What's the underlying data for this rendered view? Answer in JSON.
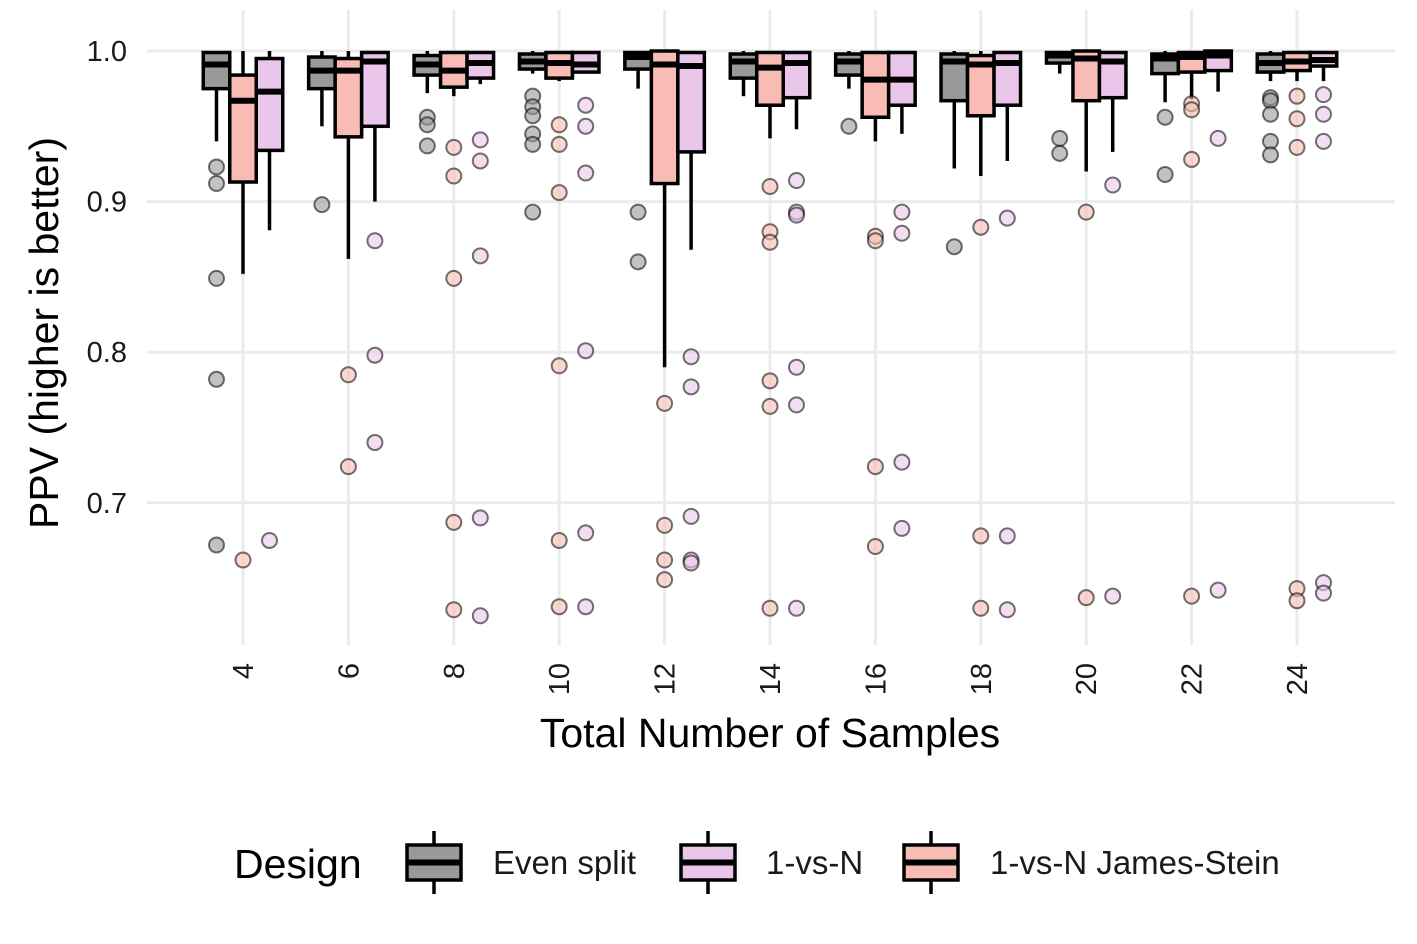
{
  "chart_data": {
    "type": "boxplot",
    "title": "",
    "xlabel": "Total Number of Samples",
    "ylabel": "PPV (higher is better)",
    "ylim": [
      0.605,
      1.02
    ],
    "y_ticks": [
      "0.7",
      "0.8",
      "0.9",
      "1.0"
    ],
    "y_tick_values": [
      0.7,
      0.8,
      0.9,
      1.0
    ],
    "categories": [
      "4",
      "6",
      "8",
      "10",
      "12",
      "14",
      "16",
      "18",
      "20",
      "22",
      "24"
    ],
    "grid": true,
    "legend": {
      "title": "Design",
      "position": "bottom",
      "entries": [
        {
          "name": "Even split",
          "color": "#999999"
        },
        {
          "name": "1-vs-N",
          "color": "#eac6ea"
        },
        {
          "name": "1-vs-N James-Stein",
          "color": "#f8bcb4"
        }
      ]
    },
    "series": [
      {
        "name": "Even split",
        "color": "#999999",
        "boxes": [
          {
            "lo": 0.94,
            "q1": 0.975,
            "median": 0.991,
            "q3": 0.999,
            "hi": 1.0,
            "outliers": [
              0.923,
              0.912,
              0.849,
              0.782,
              0.672
            ]
          },
          {
            "lo": 0.95,
            "q1": 0.975,
            "median": 0.987,
            "q3": 0.996,
            "hi": 1.0,
            "outliers": [
              0.898
            ]
          },
          {
            "lo": 0.972,
            "q1": 0.984,
            "median": 0.991,
            "q3": 0.997,
            "hi": 1.0,
            "outliers": [
              0.956,
              0.951,
              0.937
            ]
          },
          {
            "lo": 0.985,
            "q1": 0.988,
            "median": 0.993,
            "q3": 0.998,
            "hi": 1.0,
            "outliers": [
              0.97,
              0.963,
              0.957,
              0.945,
              0.938,
              0.893
            ]
          },
          {
            "lo": 0.975,
            "q1": 0.988,
            "median": 0.996,
            "q3": 0.999,
            "hi": 1.0,
            "outliers": [
              0.893,
              0.86
            ]
          },
          {
            "lo": 0.97,
            "q1": 0.982,
            "median": 0.993,
            "q3": 0.998,
            "hi": 1.0,
            "outliers": []
          },
          {
            "lo": 0.975,
            "q1": 0.984,
            "median": 0.993,
            "q3": 0.998,
            "hi": 1.0,
            "outliers": [
              0.95
            ]
          },
          {
            "lo": 0.922,
            "q1": 0.967,
            "median": 0.993,
            "q3": 0.998,
            "hi": 1.0,
            "outliers": [
              0.87
            ]
          },
          {
            "lo": 0.985,
            "q1": 0.992,
            "median": 0.997,
            "q3": 0.999,
            "hi": 1.0,
            "outliers": [
              0.942,
              0.932
            ]
          },
          {
            "lo": 0.966,
            "q1": 0.985,
            "median": 0.995,
            "q3": 0.998,
            "hi": 1.0,
            "outliers": [
              0.956,
              0.918
            ]
          },
          {
            "lo": 0.98,
            "q1": 0.986,
            "median": 0.992,
            "q3": 0.998,
            "hi": 1.0,
            "outliers": [
              0.969,
              0.967,
              0.958,
              0.94,
              0.931
            ]
          }
        ]
      },
      {
        "name": "1-vs-N James-Stein",
        "color": "#f8bcb4",
        "boxes": [
          {
            "lo": 0.852,
            "q1": 0.913,
            "median": 0.967,
            "q3": 0.984,
            "hi": 1.0,
            "outliers": [
              0.662
            ]
          },
          {
            "lo": 0.862,
            "q1": 0.943,
            "median": 0.987,
            "q3": 0.995,
            "hi": 1.0,
            "outliers": [
              0.785,
              0.724
            ]
          },
          {
            "lo": 0.97,
            "q1": 0.976,
            "median": 0.987,
            "q3": 0.999,
            "hi": 1.0,
            "outliers": [
              0.936,
              0.917,
              0.849,
              0.687,
              0.629
            ]
          },
          {
            "lo": 0.98,
            "q1": 0.982,
            "median": 0.992,
            "q3": 0.999,
            "hi": 1.0,
            "outliers": [
              0.951,
              0.938,
              0.906,
              0.791,
              0.675,
              0.631
            ]
          },
          {
            "lo": 0.79,
            "q1": 0.912,
            "median": 0.991,
            "q3": 1.0,
            "hi": 1.0,
            "outliers": [
              0.766,
              0.685,
              0.662,
              0.649
            ]
          },
          {
            "lo": 0.942,
            "q1": 0.964,
            "median": 0.989,
            "q3": 0.999,
            "hi": 1.0,
            "outliers": [
              0.91,
              0.88,
              0.873,
              0.781,
              0.764,
              0.63
            ]
          },
          {
            "lo": 0.94,
            "q1": 0.956,
            "median": 0.981,
            "q3": 0.999,
            "hi": 1.0,
            "outliers": [
              0.877,
              0.874,
              0.724,
              0.671
            ]
          },
          {
            "lo": 0.917,
            "q1": 0.957,
            "median": 0.991,
            "q3": 0.997,
            "hi": 1.0,
            "outliers": [
              0.883,
              0.678,
              0.63
            ]
          },
          {
            "lo": 0.92,
            "q1": 0.967,
            "median": 0.995,
            "q3": 1.0,
            "hi": 1.0,
            "outliers": [
              0.893,
              0.637
            ]
          },
          {
            "lo": 0.968,
            "q1": 0.986,
            "median": 0.996,
            "q3": 0.999,
            "hi": 1.0,
            "outliers": [
              0.965,
              0.961,
              0.928,
              0.638
            ]
          },
          {
            "lo": 0.98,
            "q1": 0.987,
            "median": 0.993,
            "q3": 0.999,
            "hi": 1.0,
            "outliers": [
              0.97,
              0.955,
              0.936,
              0.643,
              0.635
            ]
          }
        ]
      },
      {
        "name": "1-vs-N",
        "color": "#eac6ea",
        "boxes": [
          {
            "lo": 0.881,
            "q1": 0.934,
            "median": 0.973,
            "q3": 0.995,
            "hi": 1.0,
            "outliers": [
              0.675
            ]
          },
          {
            "lo": 0.9,
            "q1": 0.95,
            "median": 0.993,
            "q3": 0.999,
            "hi": 1.0,
            "outliers": [
              0.874,
              0.798,
              0.74
            ]
          },
          {
            "lo": 0.978,
            "q1": 0.982,
            "median": 0.992,
            "q3": 0.999,
            "hi": 1.0,
            "outliers": [
              0.941,
              0.927,
              0.864,
              0.69,
              0.625
            ]
          },
          {
            "lo": 0.986,
            "q1": 0.986,
            "median": 0.991,
            "q3": 0.999,
            "hi": 1.0,
            "outliers": [
              0.964,
              0.95,
              0.919,
              0.801,
              0.68,
              0.631
            ]
          },
          {
            "lo": 0.868,
            "q1": 0.933,
            "median": 0.99,
            "q3": 0.999,
            "hi": 1.0,
            "outliers": [
              0.797,
              0.777,
              0.691,
              0.662,
              0.66
            ]
          },
          {
            "lo": 0.948,
            "q1": 0.969,
            "median": 0.992,
            "q3": 0.999,
            "hi": 1.0,
            "outliers": [
              0.914,
              0.893,
              0.891,
              0.79,
              0.765,
              0.63
            ]
          },
          {
            "lo": 0.945,
            "q1": 0.964,
            "median": 0.981,
            "q3": 0.999,
            "hi": 1.0,
            "outliers": [
              0.893,
              0.879,
              0.727,
              0.683
            ]
          },
          {
            "lo": 0.927,
            "q1": 0.964,
            "median": 0.992,
            "q3": 0.999,
            "hi": 1.0,
            "outliers": [
              0.889,
              0.678,
              0.629
            ]
          },
          {
            "lo": 0.933,
            "q1": 0.969,
            "median": 0.993,
            "q3": 0.999,
            "hi": 1.0,
            "outliers": [
              0.911,
              0.638
            ]
          },
          {
            "lo": 0.973,
            "q1": 0.987,
            "median": 0.997,
            "q3": 1.0,
            "hi": 1.0,
            "outliers": [
              0.942,
              0.642
            ]
          },
          {
            "lo": 0.98,
            "q1": 0.99,
            "median": 0.994,
            "q3": 0.999,
            "hi": 1.0,
            "outliers": [
              0.971,
              0.958,
              0.94,
              0.647,
              0.64
            ]
          }
        ]
      }
    ]
  }
}
